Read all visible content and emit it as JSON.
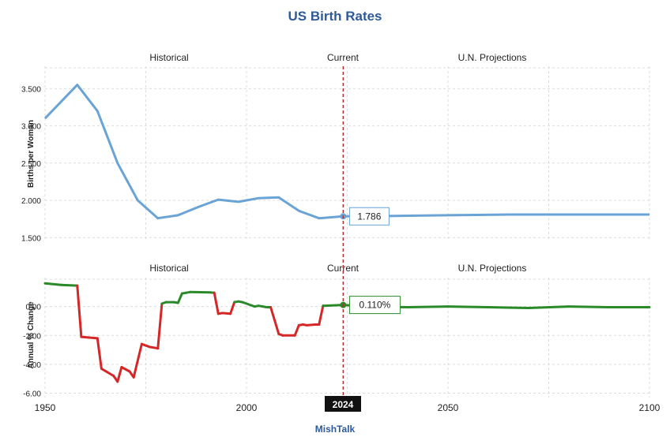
{
  "chart_data": {
    "title": "US Birth Rates",
    "source": "MishTalk",
    "type": "line",
    "x_ticks": [
      "1950",
      "2000",
      "2050",
      "2100"
    ],
    "current_year_label": "2024",
    "current_year": 2024,
    "xlim": [
      1950,
      2100
    ],
    "section_labels": {
      "historical": "Historical",
      "current": "Current",
      "projections": "U.N. Projections"
    },
    "colors": {
      "top_line": "#6aa3d5",
      "negative": "#d62728",
      "positive": "#2a8a2a",
      "current_line": "#b03030",
      "title": "#2e5a9a"
    },
    "panels": [
      {
        "ylabel": "Births per Woman",
        "ylim": [
          1.45,
          3.8
        ],
        "y_ticks": [
          {
            "value": 1.5,
            "label": "1.500"
          },
          {
            "value": 2.0,
            "label": "2.000"
          },
          {
            "value": 2.5,
            "label": "2.500"
          },
          {
            "value": 3.0,
            "label": "3.000"
          },
          {
            "value": 3.5,
            "label": "3.500"
          }
        ],
        "callout": {
          "x": 2024,
          "y": 1.786,
          "label": "1.786"
        },
        "series": [
          {
            "x": [
              1950,
              1958,
              1963,
              1968,
              1973,
              1978,
              1983,
              1988,
              1993,
              1998,
              2003,
              2008,
              2013,
              2018,
              2024,
              2035,
              2050,
              2065,
              2080,
              2090,
              2100
            ],
            "y": [
              3.1,
              3.55,
              3.2,
              2.5,
              2.0,
              1.76,
              1.8,
              1.91,
              2.01,
              1.98,
              2.03,
              2.04,
              1.86,
              1.76,
              1.786,
              1.79,
              1.8,
              1.81,
              1.81,
              1.81,
              1.81
            ]
          }
        ]
      },
      {
        "ylabel": "Annual % Change",
        "ylim": [
          -6.3,
          2.0
        ],
        "y_ticks": [
          {
            "value": -6,
            "label": "-6.00"
          },
          {
            "value": -4,
            "label": "-4.00"
          },
          {
            "value": -2,
            "label": "-2.00"
          },
          {
            "value": 0,
            "label": "0.00"
          }
        ],
        "callout": {
          "x": 2024,
          "y": 0.11,
          "label": "0.110%"
        },
        "series": [
          {
            "x": [
              1950,
              1954,
              1958,
              1959,
              1963,
              1964,
              1967,
              1968,
              1969,
              1971,
              1972,
              1974,
              1975,
              1976,
              1978,
              1979,
              1980,
              1982,
              1983,
              1984,
              1985,
              1986,
              1991,
              1992,
              1993,
              1994,
              1996,
              1997,
              1998,
              1999,
              2002,
              2003,
              2005,
              2006,
              2008,
              2009,
              2012,
              2013,
              2014,
              2015,
              2017,
              2018,
              2019,
              2024,
              2030,
              2040,
              2050,
              2060,
              2070,
              2080,
              2090,
              2100
            ],
            "y": [
              1.6,
              1.5,
              1.45,
              -2.1,
              -2.2,
              -4.3,
              -4.8,
              -5.2,
              -4.2,
              -4.5,
              -4.9,
              -2.6,
              -2.7,
              -2.8,
              -2.9,
              0.2,
              0.3,
              0.3,
              0.25,
              0.9,
              0.95,
              1.0,
              0.98,
              0.95,
              -0.5,
              -0.45,
              -0.5,
              0.3,
              0.35,
              0.3,
              0.0,
              0.05,
              -0.05,
              -0.05,
              -1.9,
              -2.0,
              -2.0,
              -1.3,
              -1.25,
              -1.3,
              -1.25,
              -1.25,
              0.05,
              0.11,
              0.0,
              -0.05,
              0.0,
              -0.05,
              -0.1,
              0.0,
              -0.05,
              -0.05
            ]
          }
        ]
      }
    ]
  }
}
